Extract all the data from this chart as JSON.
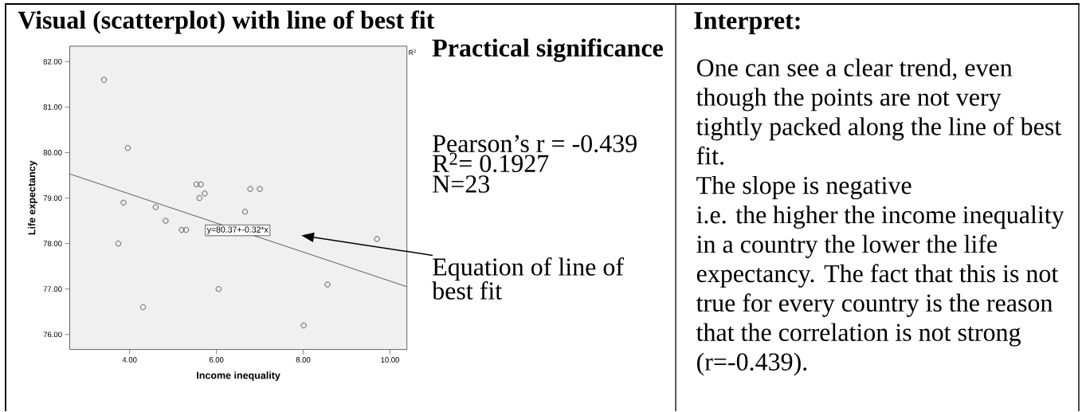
{
  "chart_data": {
    "type": "scatter",
    "title": "Visual (scatterplot) with line of best fit",
    "xlabel": "Income inequality",
    "ylabel": "Life expectancy",
    "xlim": [
      2.62,
      10.39
    ],
    "ylim": [
      75.67,
      82.34
    ],
    "xticks": [
      {
        "value": 4,
        "label": "4.00"
      },
      {
        "value": 6,
        "label": "6.00"
      },
      {
        "value": 8,
        "label": "8.00"
      },
      {
        "value": 10,
        "label": "10.00"
      }
    ],
    "yticks": [
      {
        "value": 76,
        "label": "76.00"
      },
      {
        "value": 77,
        "label": "77.00"
      },
      {
        "value": 78,
        "label": "78.00"
      },
      {
        "value": 79,
        "label": "79.00"
      },
      {
        "value": 80,
        "label": "80.00"
      },
      {
        "value": 81,
        "label": "81.00"
      },
      {
        "value": 82,
        "label": "82.00"
      }
    ],
    "series": [
      {
        "color": "#333333",
        "marker": "circle",
        "x": [
          3.41,
          3.74,
          3.86,
          3.96,
          4.31,
          4.6,
          4.83,
          5.2,
          5.3,
          5.54,
          5.61,
          5.64,
          5.73,
          6.05,
          6.66,
          6.78,
          7.0,
          8.01,
          8.56,
          9.7
        ],
        "values": [
          81.6,
          78.0,
          78.9,
          80.1,
          76.6,
          78.8,
          78.5,
          78.3,
          78.3,
          79.3,
          79.0,
          79.3,
          79.1,
          77.0,
          78.7,
          79.2,
          79.2,
          76.2,
          77.1,
          78.1
        ]
      },
      {
        "type": "line",
        "color": "#4d4d4d",
        "marker": "none",
        "x": [
          2.62,
          10.39
        ],
        "values": [
          79.53,
          77.05
        ]
      }
    ],
    "annotations": [
      {
        "text": "y=80.37+-0.32*x",
        "x": 6.49,
        "y": 78.29
      },
      "R$^{2}$",
      "Practical significance",
      "Pearson’s r = -0.439",
      "R$^{2}$= 0.1927",
      "N=23",
      "Equation of line of best fit",
      "Interpret:",
      "One can see a clear trend, even though the points are not very tightly packed along the line of best fit.",
      "The slope is negative",
      "i.e. the higher the income inequality in a country the lower the life expectancy. The fact that this is not true for every country is the reason that the correlation is not strong (r=-0.439)."
    ]
  }
}
